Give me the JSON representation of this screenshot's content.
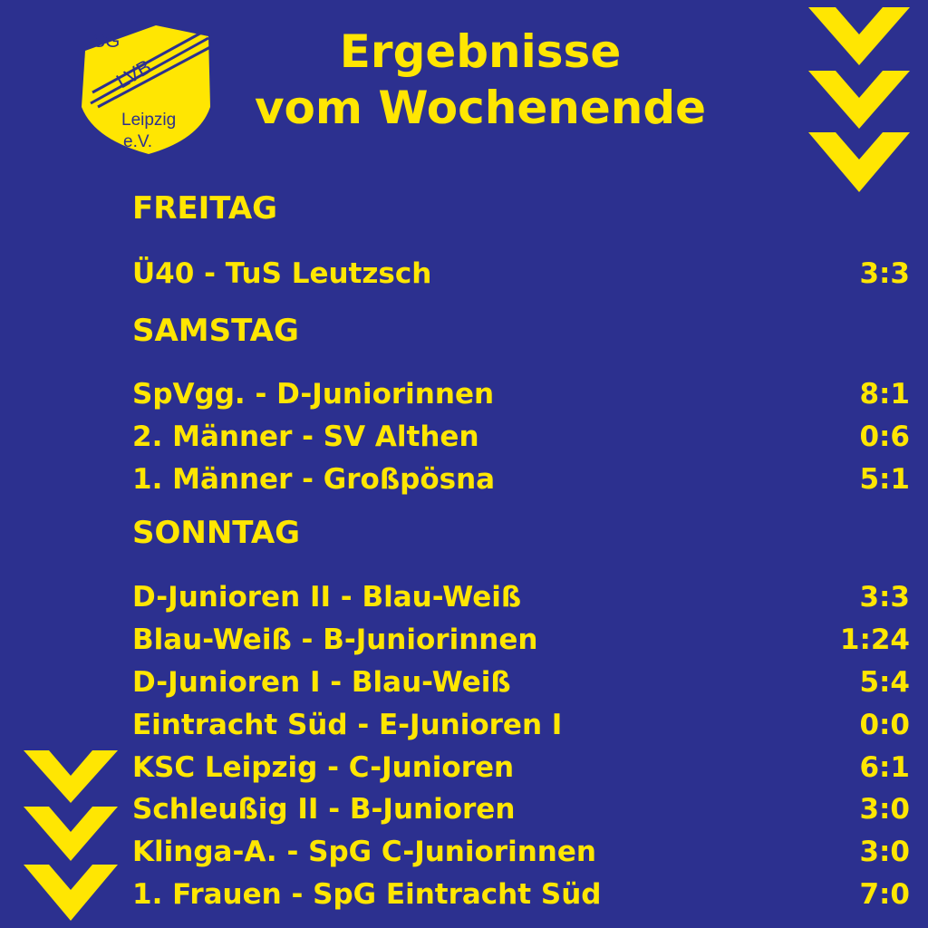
{
  "logo": {
    "top_text": "SG",
    "band_text": "LVB",
    "city": "Leipzig",
    "suffix": "e.V."
  },
  "title": {
    "line1": "Ergebnisse",
    "line2": "vom Wochenende"
  },
  "colors": {
    "background": "#2c308f",
    "accent": "#ffe602"
  },
  "days": [
    {
      "label": "FREITAG",
      "results": [
        {
          "match": "Ü40 - TuS Leutzsch",
          "score": "3:3"
        }
      ]
    },
    {
      "label": "SAMSTAG",
      "results": [
        {
          "match": "SpVgg. - D-Juniorinnen",
          "score": "8:1"
        },
        {
          "match": "2. Männer - SV Althen",
          "score": "0:6"
        },
        {
          "match": "1. Männer - Großpösna",
          "score": "5:1"
        }
      ]
    },
    {
      "label": "SONNTAG",
      "results": [
        {
          "match": "D-Junioren II - Blau-Weiß",
          "score": "3:3"
        },
        {
          "match": "Blau-Weiß - B-Juniorinnen",
          "score": "1:24"
        },
        {
          "match": "D-Junioren I - Blau-Weiß",
          "score": "5:4"
        },
        {
          "match": "Eintracht Süd - E-Junioren I",
          "score": "0:0"
        },
        {
          "match": "KSC Leipzig - C-Junioren",
          "score": "6:1"
        },
        {
          "match": "Schleußig II - B-Junioren",
          "score": "3:0"
        },
        {
          "match": "Klinga-A. - SpG C-Juniorinnen",
          "score": "3:0"
        },
        {
          "match": "1. Frauen - SpG Eintracht Süd",
          "score": "7:0"
        }
      ]
    }
  ],
  "icons": [
    "club-crest-icon",
    "chevron-down-icon"
  ]
}
